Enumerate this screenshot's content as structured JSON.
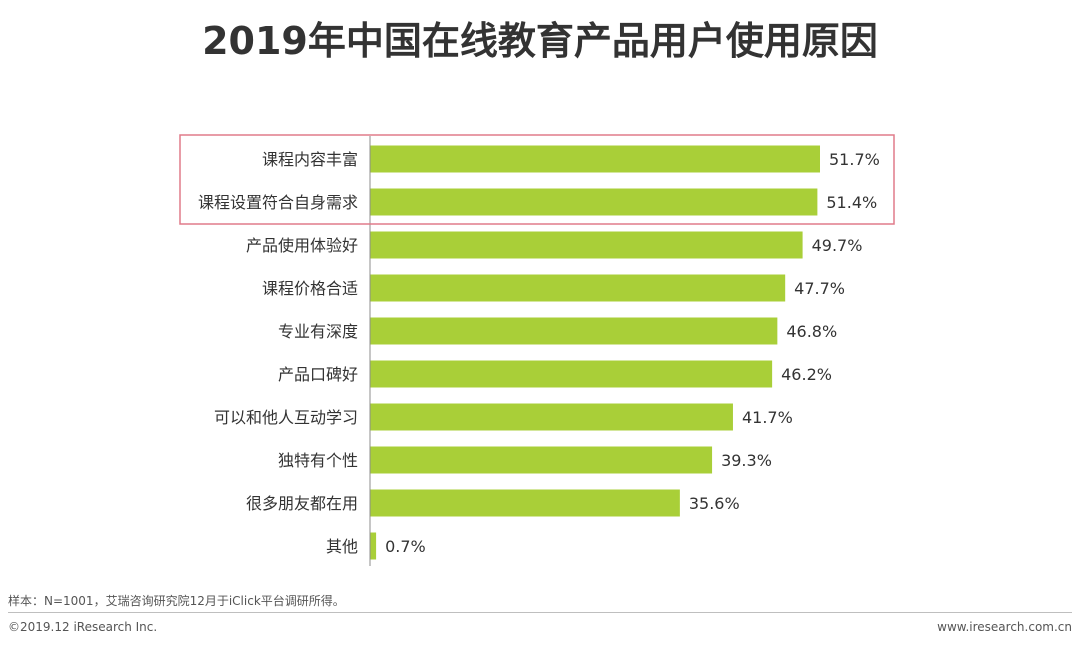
{
  "chart_data": {
    "type": "bar",
    "orientation": "horizontal",
    "title": "2019年中国在线教育产品用户使用原因",
    "categories": [
      "课程内容丰富",
      "课程设置符合自身需求",
      "产品使用体验好",
      "课程价格合适",
      "专业有深度",
      "产品口碑好",
      "可以和他人互动学习",
      "独特有个性",
      "很多朋友都在用",
      "其他"
    ],
    "values": [
      51.7,
      51.4,
      49.7,
      47.7,
      46.8,
      46.2,
      41.7,
      39.3,
      35.6,
      0.7
    ],
    "value_labels": [
      "51.7%",
      "51.4%",
      "49.7%",
      "47.7%",
      "46.8%",
      "46.2%",
      "41.7%",
      "39.3%",
      "35.6%",
      "0.7%"
    ],
    "unit": "%",
    "xlim": [
      0,
      55
    ],
    "grid": false,
    "legend": "none",
    "highlighted_categories": [
      "课程内容丰富",
      "课程设置符合自身需求"
    ]
  },
  "colors": {
    "bar": "#a9cf38",
    "highlight_border": "#e07b8a",
    "axis": "#8c8c8c",
    "text": "#333333"
  },
  "footer": {
    "note": "样本：N=1001，艾瑞咨询研究院12月于iClick平台调研所得。",
    "copyright": "©2019.12 iResearch Inc.",
    "website": "www.iresearch.com.cn"
  }
}
